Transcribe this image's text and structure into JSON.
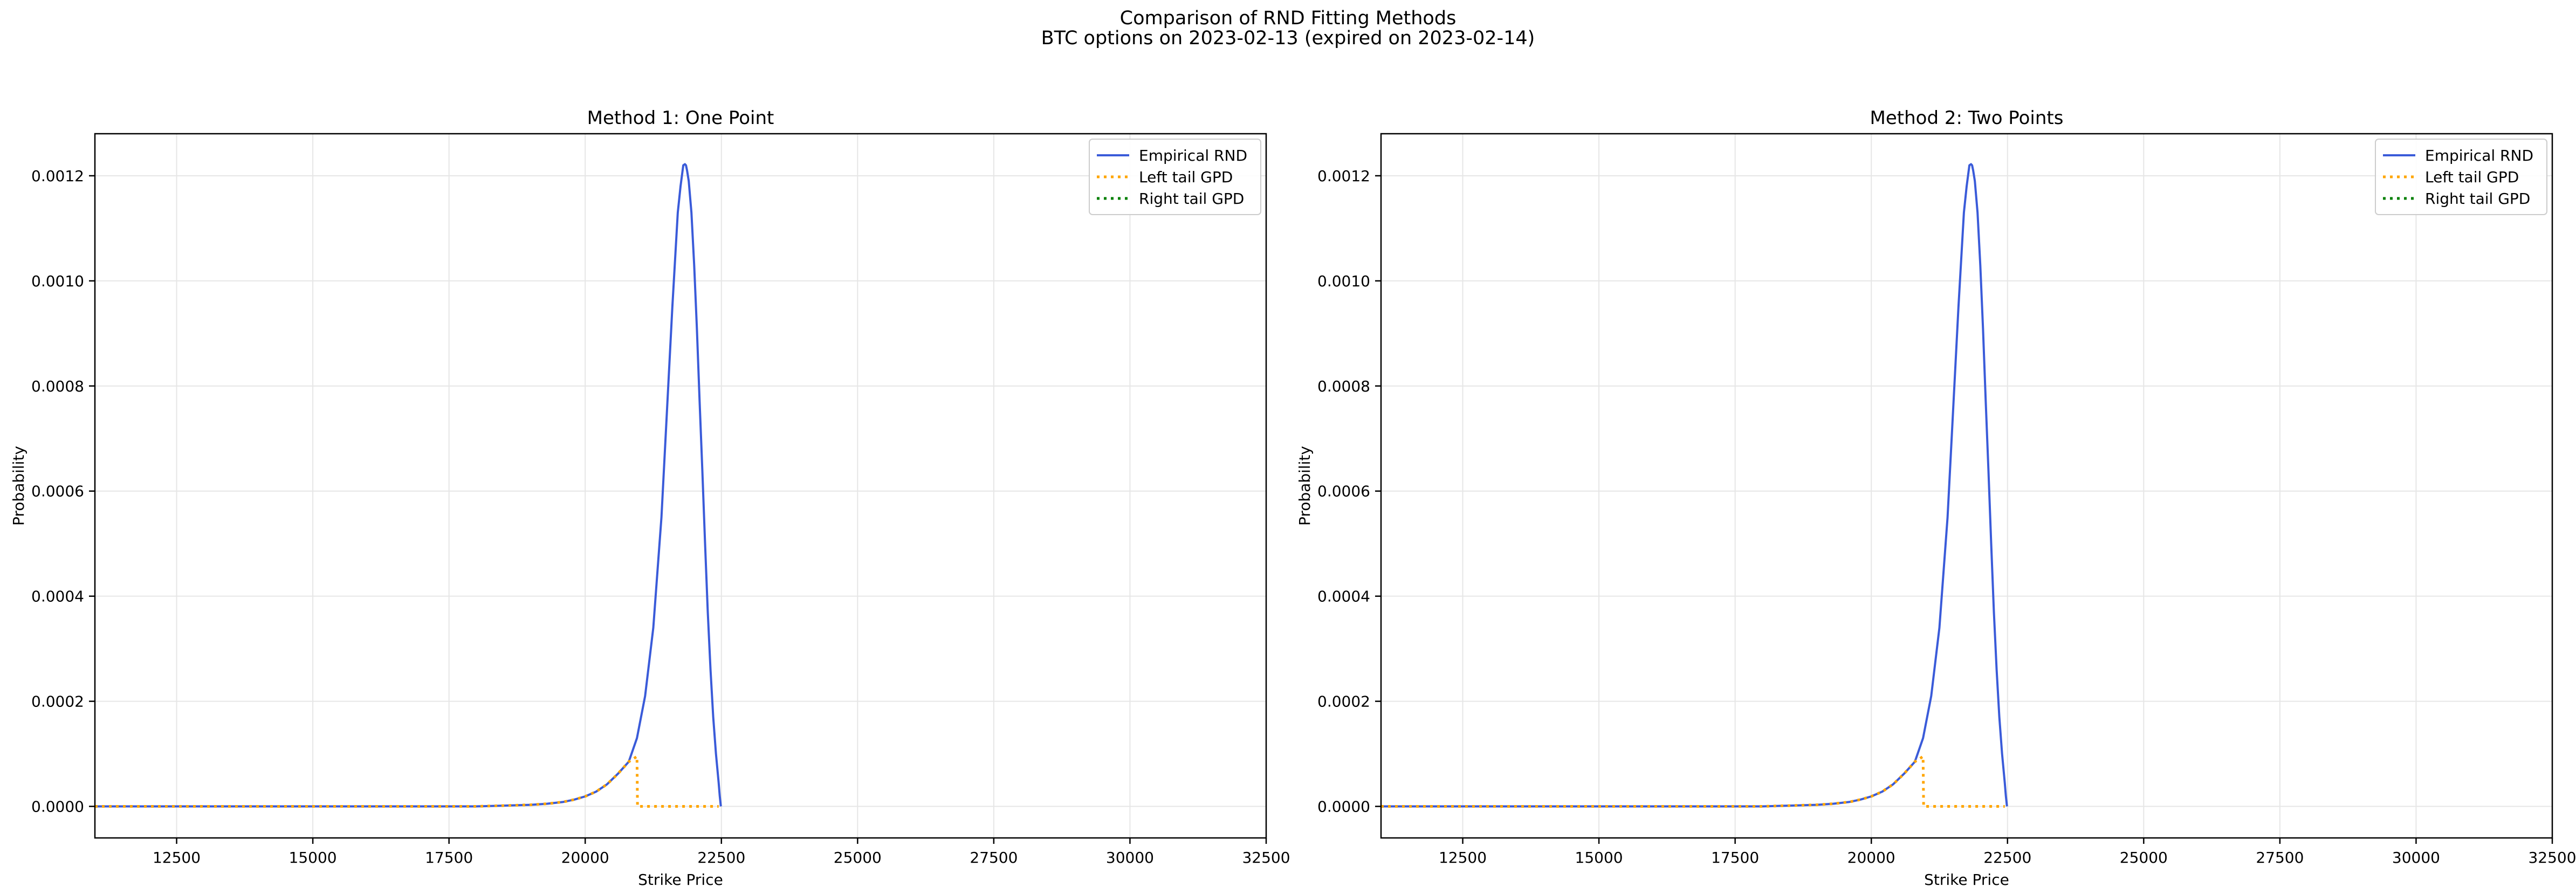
{
  "figure": {
    "suptitle_line1": "Comparison of RND Fitting Methods",
    "suptitle_line2": "BTC options on 2023-02-13 (expired on 2023-02-14)"
  },
  "chart_data": [
    {
      "type": "line",
      "title": "Method 1: One Point",
      "xlabel": "Strike Price",
      "ylabel": "Probability",
      "xlim": [
        11000,
        32500
      ],
      "ylim": [
        -6e-05,
        0.00128
      ],
      "xticks": [
        12500,
        15000,
        17500,
        20000,
        22500,
        25000,
        27500,
        30000,
        32500
      ],
      "xtick_labels": [
        "12500",
        "15000",
        "17500",
        "20000",
        "22500",
        "25000",
        "27500",
        "30000",
        "32500"
      ],
      "yticks": [
        0.0,
        0.0002,
        0.0004,
        0.0006,
        0.0008,
        0.001,
        0.0012
      ],
      "ytick_labels": [
        "0.0000",
        "0.0002",
        "0.0004",
        "0.0006",
        "0.0008",
        "0.0010",
        "0.0012"
      ],
      "grid": true,
      "legend_position": "top-right",
      "series": [
        {
          "name": "Empirical RND",
          "color": "#3a5bd9",
          "style": "solid",
          "x": [
            11000,
            12000,
            13000,
            14000,
            15000,
            16000,
            17000,
            18000,
            18500,
            19000,
            19300,
            19600,
            19800,
            20000,
            20200,
            20400,
            20600,
            20800,
            20950,
            21100,
            21250,
            21400,
            21500,
            21600,
            21700,
            21750,
            21800,
            21830,
            21850,
            21870,
            21900,
            21950,
            22000,
            22050,
            22100,
            22150,
            22200,
            22250,
            22300,
            22350,
            22400,
            22450,
            22470,
            22490
          ],
          "y": [
            0.0,
            0.0,
            0.0,
            0.0,
            0.0,
            0.0,
            0.0,
            0.0,
            1.5e-06,
            3e-06,
            5e-06,
            8.5e-06,
            1.3e-05,
            1.9e-05,
            2.8e-05,
            4.2e-05,
            6.2e-05,
            8.5e-05,
            0.00013,
            0.00021,
            0.00034,
            0.00055,
            0.00075,
            0.00095,
            0.00113,
            0.00118,
            0.00122,
            0.001222,
            0.00122,
            0.00121,
            0.00119,
            0.00113,
            0.00103,
            0.00091,
            0.00077,
            0.00064,
            0.0005,
            0.00037,
            0.00026,
            0.00017,
            0.0001,
            4.5e-05,
            2e-05,
            0.0
          ]
        },
        {
          "name": "Left tail GPD",
          "color": "#ffa500",
          "style": "dotted",
          "x": [
            11000,
            13000,
            15000,
            17000,
            18000,
            18500,
            19000,
            19300,
            19600,
            19800,
            20000,
            20200,
            20400,
            20600,
            20800,
            20950,
            20960,
            21500,
            22050,
            22450
          ],
          "y": [
            0.0,
            0.0,
            0.0,
            0.0,
            0.0,
            1.5e-06,
            3e-06,
            5e-06,
            8.5e-06,
            1.3e-05,
            1.9e-05,
            2.8e-05,
            4.2e-05,
            6.2e-05,
            8.5e-05,
            9.5e-05,
            0.0,
            0.0,
            0.0,
            0.0
          ]
        },
        {
          "name": "Right tail GPD",
          "color": "#008000",
          "style": "dotted",
          "x": [],
          "y": []
        }
      ]
    },
    {
      "type": "line",
      "title": "Method 2: Two Points",
      "xlabel": "Strike Price",
      "ylabel": "Probability",
      "xlim": [
        11000,
        32500
      ],
      "ylim": [
        -6e-05,
        0.00128
      ],
      "xticks": [
        12500,
        15000,
        17500,
        20000,
        22500,
        25000,
        27500,
        30000,
        32500
      ],
      "xtick_labels": [
        "12500",
        "15000",
        "17500",
        "20000",
        "22500",
        "25000",
        "27500",
        "30000",
        "32500"
      ],
      "yticks": [
        0.0,
        0.0002,
        0.0004,
        0.0006,
        0.0008,
        0.001,
        0.0012
      ],
      "ytick_labels": [
        "0.0000",
        "0.0002",
        "0.0004",
        "0.0006",
        "0.0008",
        "0.0010",
        "0.0012"
      ],
      "grid": true,
      "legend_position": "top-right",
      "series": [
        {
          "name": "Empirical RND",
          "color": "#3a5bd9",
          "style": "solid",
          "x": [
            11000,
            12000,
            13000,
            14000,
            15000,
            16000,
            17000,
            18000,
            18500,
            19000,
            19300,
            19600,
            19800,
            20000,
            20200,
            20400,
            20600,
            20800,
            20950,
            21100,
            21250,
            21400,
            21500,
            21600,
            21700,
            21750,
            21800,
            21830,
            21850,
            21870,
            21900,
            21950,
            22000,
            22050,
            22100,
            22150,
            22200,
            22250,
            22300,
            22350,
            22400,
            22450,
            22470,
            22490
          ],
          "y": [
            0.0,
            0.0,
            0.0,
            0.0,
            0.0,
            0.0,
            0.0,
            0.0,
            1.5e-06,
            3e-06,
            5e-06,
            8.5e-06,
            1.3e-05,
            1.9e-05,
            2.8e-05,
            4.2e-05,
            6.2e-05,
            8.5e-05,
            0.00013,
            0.00021,
            0.00034,
            0.00055,
            0.00075,
            0.00095,
            0.00113,
            0.00118,
            0.00122,
            0.001222,
            0.00122,
            0.00121,
            0.00119,
            0.00113,
            0.00103,
            0.00091,
            0.00077,
            0.00064,
            0.0005,
            0.00037,
            0.00026,
            0.00017,
            0.0001,
            4.5e-05,
            2e-05,
            0.0
          ]
        },
        {
          "name": "Left tail GPD",
          "color": "#ffa500",
          "style": "dotted",
          "x": [
            11000,
            13000,
            15000,
            17000,
            18000,
            18500,
            19000,
            19300,
            19600,
            19800,
            20000,
            20200,
            20400,
            20600,
            20800,
            20950,
            20960,
            21500,
            22050,
            22450
          ],
          "y": [
            0.0,
            0.0,
            0.0,
            0.0,
            0.0,
            1.5e-06,
            3e-06,
            5e-06,
            8.5e-06,
            1.3e-05,
            1.9e-05,
            2.8e-05,
            4.2e-05,
            6.2e-05,
            8.5e-05,
            9.5e-05,
            0.0,
            0.0,
            0.0,
            0.0
          ]
        },
        {
          "name": "Right tail GPD",
          "color": "#008000",
          "style": "dotted",
          "x": [],
          "y": []
        }
      ]
    }
  ]
}
